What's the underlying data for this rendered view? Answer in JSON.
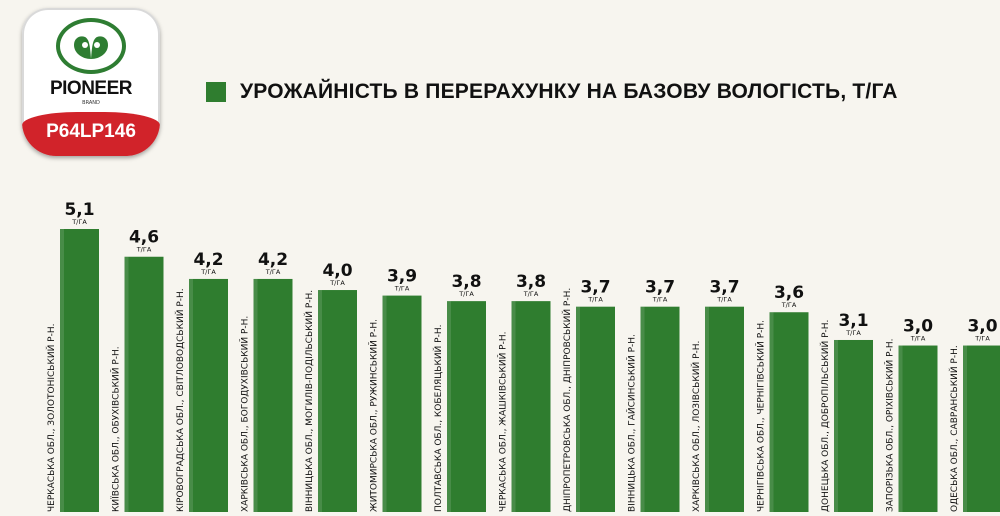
{
  "brand": {
    "name": "PIONEER",
    "sub": "BRAND",
    "hybrid": "P64LP146",
    "colors": {
      "green": "#2e7d32",
      "red": "#d1232a"
    }
  },
  "legend": {
    "label": "УРОЖАЙНІСТЬ В ПЕРЕРАХУНКУ НА БАЗОВУ ВОЛОГІСТЬ, Т/ГА",
    "color": "#2f7d2f"
  },
  "chart_data": {
    "type": "bar",
    "unit_label": "Т/ГА",
    "categories": [
      "ЧЕРКАСЬКА ОБЛ., ЗОЛОТОНІСЬКИЙ Р-Н.",
      "КИЇВСЬКА ОБЛ., ОБУХІВСЬКИЙ Р-Н.",
      "КІРОВОГРАДСЬКА ОБЛ., СВІТЛОВОДСЬКИЙ Р-Н.",
      "ХАРКІВСЬКА ОБЛ., БОГОДУХІВСЬКИЙ Р-Н.",
      "ВІННИЦЬКА ОБЛ., МОГИЛІВ-ПОДІЛЬСЬКИЙ Р-Н.",
      "ЖИТОМИРСЬКА ОБЛ., РУЖИНСЬКИЙ Р-Н.",
      "ПОЛТАВСЬКА ОБЛ., КОБЕЛЯЦЬКИЙ Р-Н.",
      "ЧЕРКАСЬКА ОБЛ., ЖАШКІВСЬКИЙ Р-Н.",
      "ДНІПРОПЕТРОВСЬКА ОБЛ., ДНІПРОВСЬКИЙ Р-Н.",
      "ВІННИЦЬКА ОБЛ., ГАЙСИНСЬКИЙ Р-Н.",
      "ХАРКІВСЬКА ОБЛ., ЛОЗІВСЬКИЙ Р-Н.",
      "ЧЕРНІГІВСЬКА ОБЛ., ЧЕРНІГІВСЬКИЙ Р-Н.",
      "ДОНЕЦЬКА ОБЛ., ДОБРОПІЛЬСЬКИЙ Р-Н.",
      "ЗАПОРІЗЬКА ОБЛ., ОРІХІВСЬКИЙ Р-Н.",
      "ОДЕСЬКА ОБЛ., САВРАНСЬКИЙ Р-Н."
    ],
    "values": [
      5.1,
      4.6,
      4.2,
      4.2,
      4.0,
      3.9,
      3.8,
      3.8,
      3.7,
      3.7,
      3.7,
      3.6,
      3.1,
      3.0,
      3.0
    ],
    "value_labels": [
      "5,1",
      "4,6",
      "4,2",
      "4,2",
      "4,0",
      "3,9",
      "3,8",
      "3,8",
      "3,7",
      "3,7",
      "3,7",
      "3,6",
      "3,1",
      "3,0",
      "3,0"
    ],
    "series": [
      {
        "name": "УРОЖАЙНІСТЬ В ПЕРЕРАХУНКУ НА БАЗОВУ ВОЛОГІСТЬ, Т/ГА",
        "color": "#2f7d2f"
      }
    ],
    "grid": false,
    "legend_position": "top",
    "ylim": [
      0,
      5.1
    ]
  }
}
